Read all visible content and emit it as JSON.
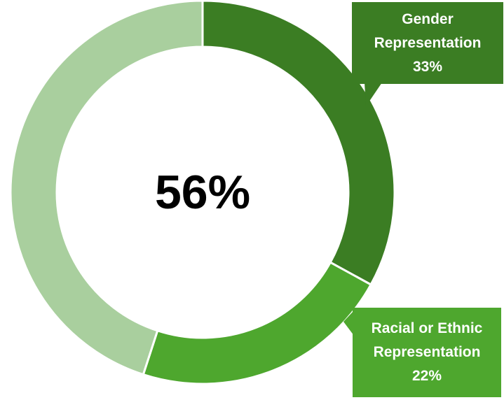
{
  "chart_data": {
    "type": "pie",
    "variant": "donut",
    "center_label": "56%",
    "slices": [
      {
        "label": "Gender Representation",
        "value": 33,
        "value_label": "33%",
        "color": "#3b7d23"
      },
      {
        "label": "Racial or Ethnic Representation",
        "value": 22,
        "value_label": "22%",
        "color": "#4ea72e"
      },
      {
        "value": 45,
        "color": "#a9cf9e"
      }
    ],
    "label_lines": [
      [
        "Gender",
        "Representation",
        "33%"
      ],
      [
        "Racial or Ethnic",
        "Representation",
        "22%"
      ]
    ]
  }
}
